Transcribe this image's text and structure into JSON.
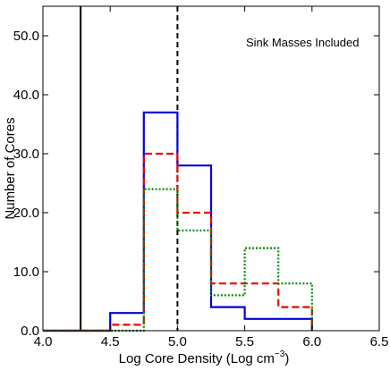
{
  "chart_data": {
    "type": "line",
    "style": "step-histogram",
    "xlabel": "Log Core Density (Log cm",
    "xlabel_sup": "−3",
    "xlabel_tail": ")",
    "ylabel": "Number of Cores",
    "annotation": "Sink Masses Included",
    "xlim": [
      4.0,
      6.5
    ],
    "ylim": [
      0,
      55
    ],
    "x_ticks": [
      4.0,
      4.5,
      5.0,
      5.5,
      6.0,
      6.5
    ],
    "x_tick_labels": [
      "4.0",
      "4.5",
      "5.0",
      "5.5",
      "6.0",
      "6.5"
    ],
    "y_ticks": [
      0,
      10,
      20,
      30,
      40,
      50
    ],
    "y_tick_labels": [
      "0.0",
      "10.0",
      "20.0",
      "30.0",
      "40.0",
      "50.0"
    ],
    "bin_edges": [
      4.0,
      4.25,
      4.5,
      4.75,
      5.0,
      5.25,
      5.5,
      5.75,
      6.0
    ],
    "series": [
      {
        "color": "#0000dd",
        "dash": "solid",
        "values": [
          0,
          0,
          3,
          37,
          28,
          4,
          2,
          2
        ]
      },
      {
        "color": "#ee0000",
        "dash": "dashed",
        "values": [
          0,
          0,
          1,
          30,
          20,
          8,
          8,
          4
        ]
      },
      {
        "color": "#008800",
        "dash": "dotted",
        "values": [
          0,
          0,
          0,
          24,
          17,
          6,
          14,
          8
        ]
      }
    ],
    "vlines": [
      {
        "x": 4.28,
        "color": "#000000",
        "dash": "solid"
      },
      {
        "x": 5.0,
        "color": "#000000",
        "dash": "dashed"
      }
    ],
    "grid": false,
    "legend": "none"
  }
}
